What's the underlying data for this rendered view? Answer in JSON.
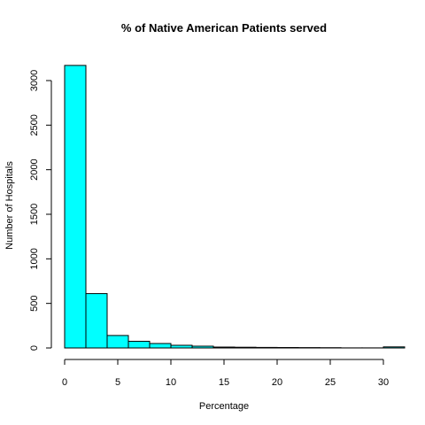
{
  "chart_data": {
    "type": "bar",
    "title": "% of Native American Patients served",
    "xlabel": "Percentage",
    "ylabel": "Number of Hospitals",
    "bin_width": 2,
    "bins": [
      {
        "x0": 0,
        "x1": 2,
        "count": 3170
      },
      {
        "x0": 2,
        "x1": 4,
        "count": 610
      },
      {
        "x0": 4,
        "x1": 6,
        "count": 140
      },
      {
        "x0": 6,
        "x1": 8,
        "count": 75
      },
      {
        "x0": 8,
        "x1": 10,
        "count": 50
      },
      {
        "x0": 10,
        "x1": 12,
        "count": 30
      },
      {
        "x0": 12,
        "x1": 14,
        "count": 20
      },
      {
        "x0": 14,
        "x1": 16,
        "count": 10
      },
      {
        "x0": 16,
        "x1": 18,
        "count": 8
      },
      {
        "x0": 18,
        "x1": 20,
        "count": 6
      },
      {
        "x0": 20,
        "x1": 22,
        "count": 5
      },
      {
        "x0": 22,
        "x1": 24,
        "count": 4
      },
      {
        "x0": 24,
        "x1": 26,
        "count": 3
      },
      {
        "x0": 26,
        "x1": 28,
        "count": 1
      },
      {
        "x0": 28,
        "x1": 30,
        "count": 1
      },
      {
        "x0": 30,
        "x1": 32,
        "count": 12
      }
    ],
    "xlim": [
      0,
      31.5
    ],
    "ylim": [
      0,
      3170
    ],
    "xticks": [
      "0",
      "5",
      "10",
      "15",
      "20",
      "25",
      "30"
    ],
    "yticks": [
      "0",
      "500",
      "1000",
      "1500",
      "2000",
      "2500",
      "3000"
    ],
    "bar_color": "#00ffff",
    "grid": false
  }
}
